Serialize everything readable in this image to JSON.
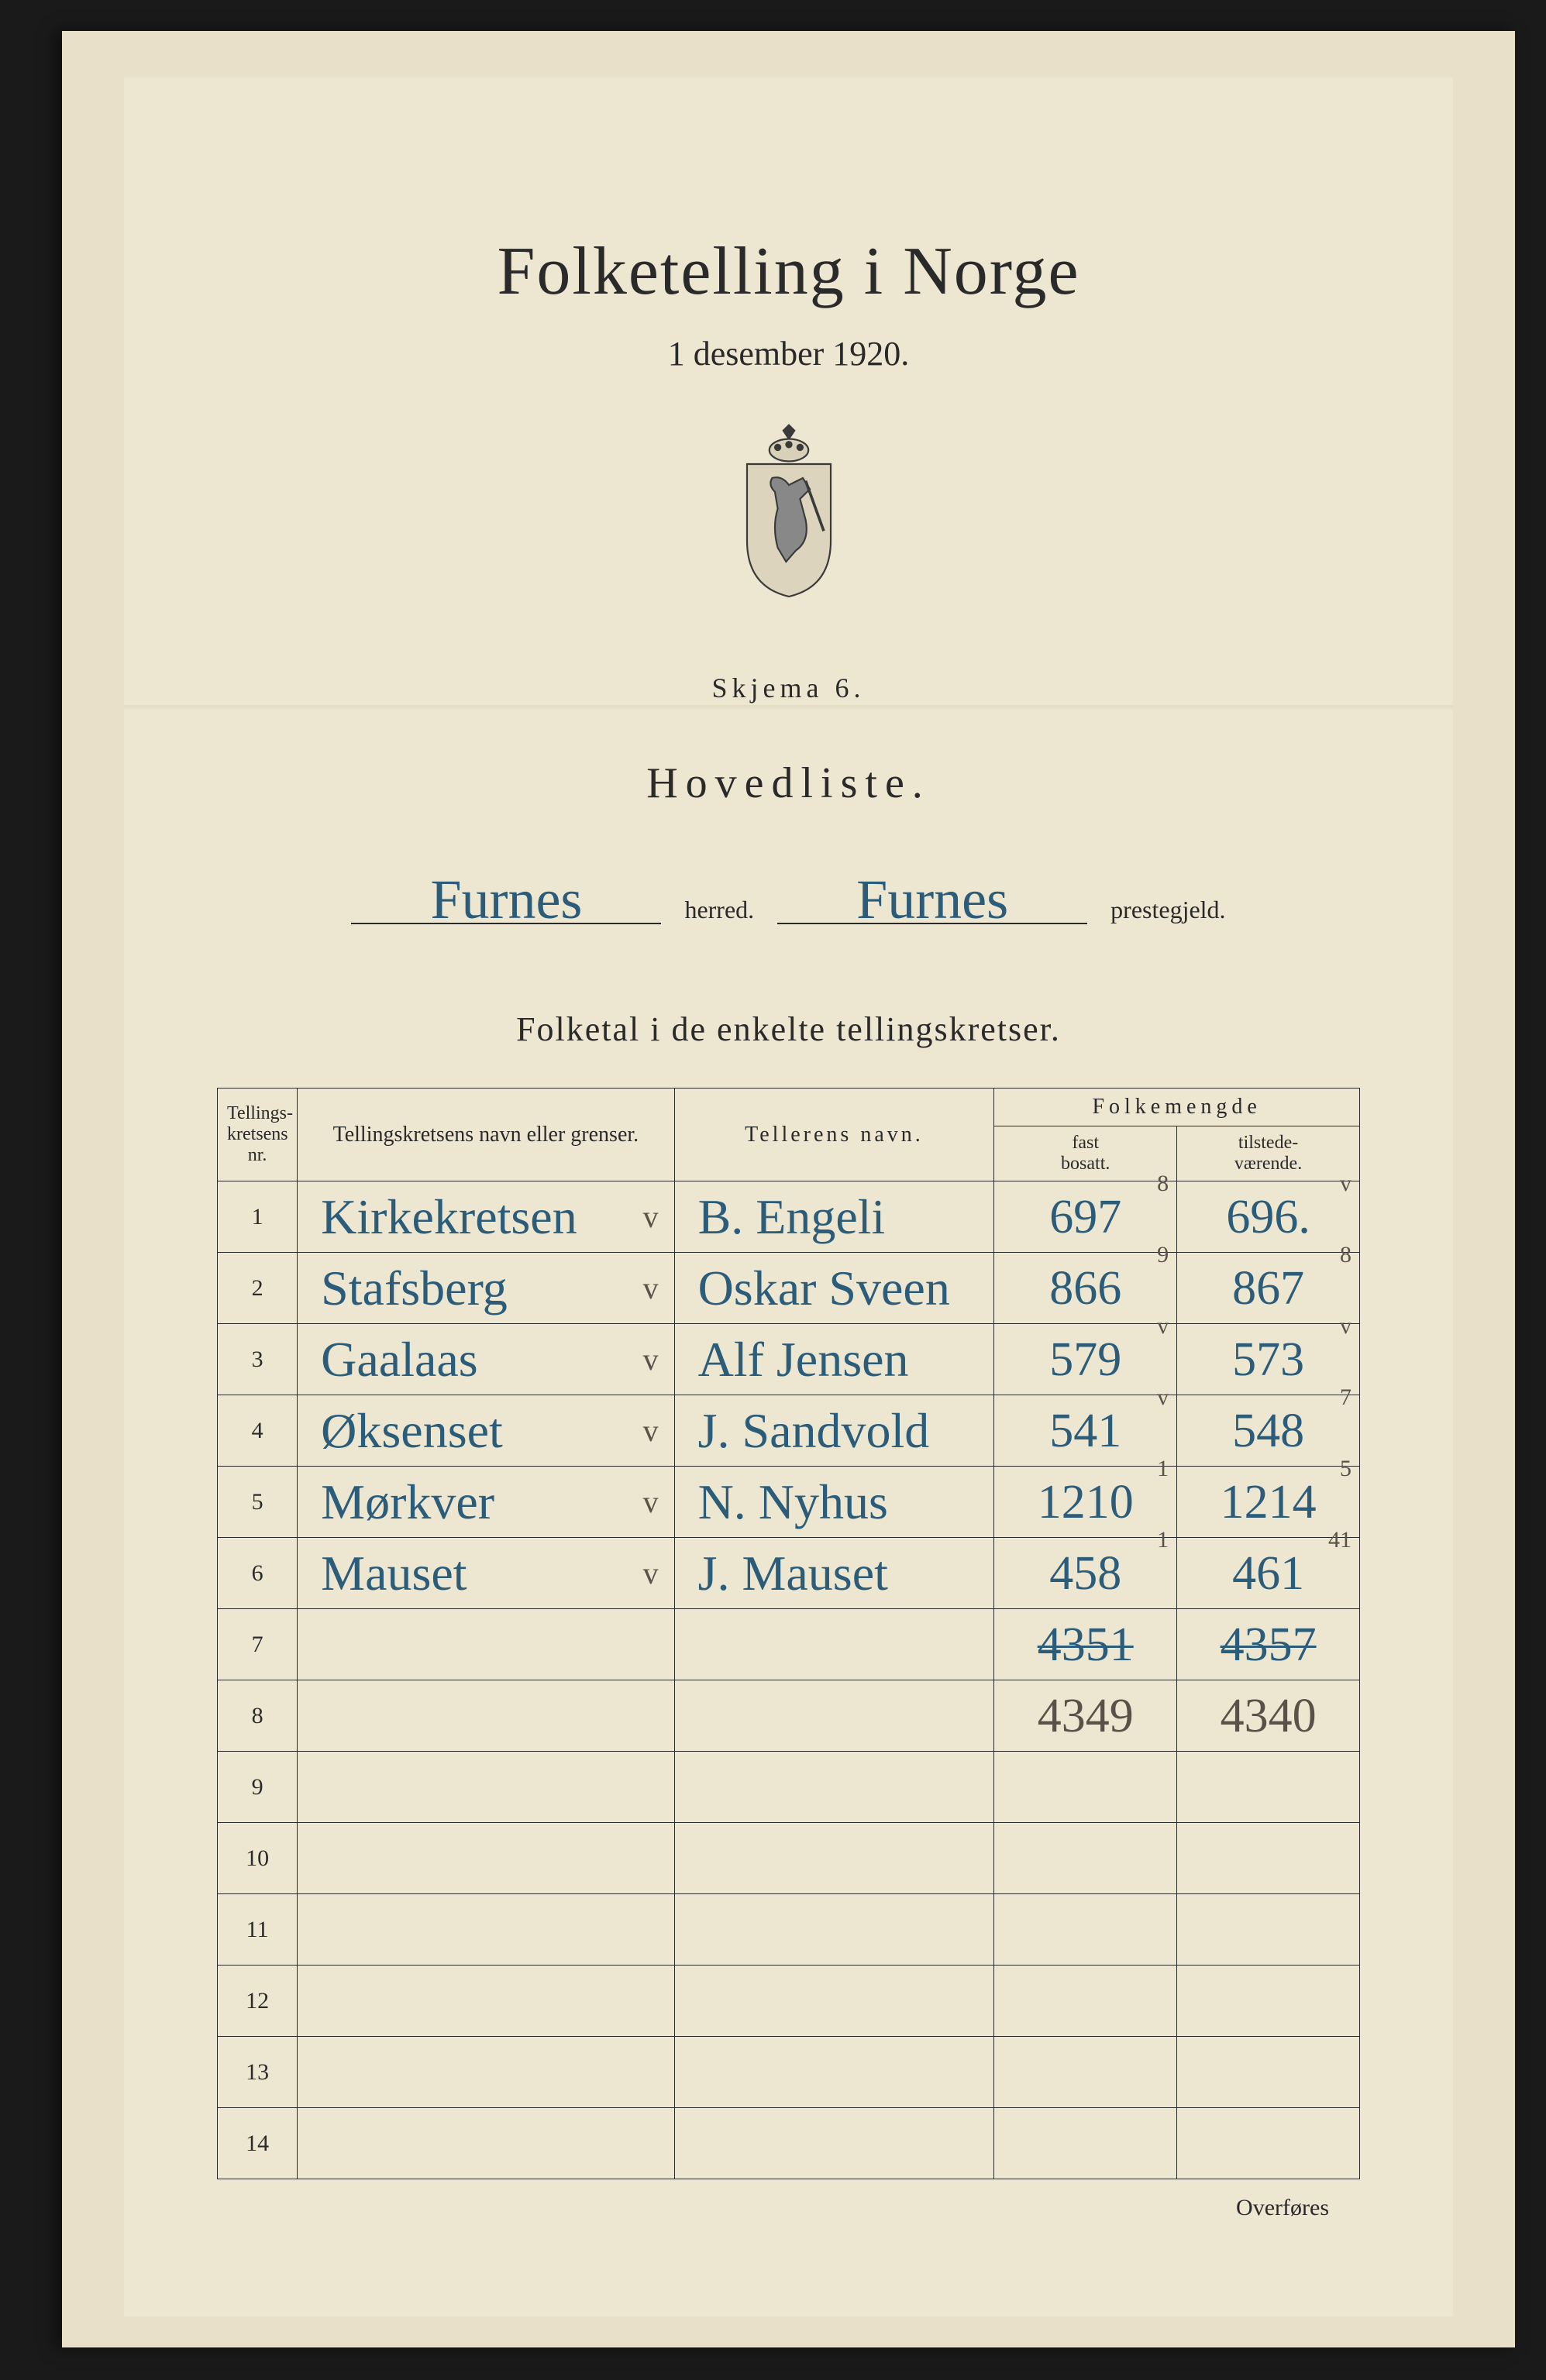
{
  "page": {
    "background_color": "#1a1a1a",
    "paper_color": "#ede6d0",
    "ink_color": "#2a2a2a",
    "handwriting_ink": "#2b5c7a",
    "pencil_ink": "#5a5248"
  },
  "header": {
    "title": "Folketelling i Norge",
    "date": "1 desember 1920.",
    "schema_label": "Skjema 6.",
    "hovedliste_label": "Hovedliste.",
    "herred_value": "Furnes",
    "herred_label": "herred.",
    "prestegjeld_value": "Furnes",
    "prestegjeld_label": "prestegjeld.",
    "section_title": "Folketal i de enkelte tellingskretser."
  },
  "table": {
    "headers": {
      "nr": "Tellings-\nkretsens\nnr.",
      "name": "Tellingskretsens navn eller grenser.",
      "teller": "Tellerens navn.",
      "folkemengde": "Folkemengde",
      "fast": "fast\nbosatt.",
      "tilstede": "tilstede-\nværende."
    },
    "rows": [
      {
        "nr": "1",
        "name": "Kirkekretsen",
        "check": "v",
        "teller": "B. Engeli",
        "fast": "697",
        "fast_sup": "8",
        "tils": "696.",
        "tils_mark": "v"
      },
      {
        "nr": "2",
        "name": "Stafsberg",
        "check": "v",
        "teller": "Oskar Sveen",
        "fast": "866",
        "fast_sup": "9",
        "tils": "867",
        "tils_mark": "8"
      },
      {
        "nr": "3",
        "name": "Gaalaas",
        "check": "v",
        "teller": "Alf Jensen",
        "fast": "579",
        "fast_sup": "v",
        "tils": "573",
        "tils_mark": "v"
      },
      {
        "nr": "4",
        "name": "Øksenset",
        "check": "v",
        "teller": "J. Sandvold",
        "fast": "541",
        "fast_sup": "v",
        "tils": "548",
        "tils_mark": "7"
      },
      {
        "nr": "5",
        "name": "Mørkver",
        "check": "v",
        "teller": "N. Nyhus",
        "fast": "1210",
        "fast_sup": "1",
        "tils": "1214",
        "tils_mark": "5"
      },
      {
        "nr": "6",
        "name": "Mauset",
        "check": "v",
        "teller": "J. Mauset",
        "fast": "458",
        "fast_sup": "1",
        "tils": "461",
        "tils_mark": "41"
      },
      {
        "nr": "7",
        "name": "",
        "check": "",
        "teller": "",
        "fast": "4351",
        "fast_struck": true,
        "tils": "4357",
        "tils_struck": true
      },
      {
        "nr": "8",
        "name": "",
        "check": "",
        "teller": "",
        "fast": "4349",
        "fast_pencil": true,
        "tils": "4340",
        "tils_pencil": true
      },
      {
        "nr": "9"
      },
      {
        "nr": "10"
      },
      {
        "nr": "11"
      },
      {
        "nr": "12"
      },
      {
        "nr": "13"
      },
      {
        "nr": "14"
      }
    ],
    "overfores_label": "Overføres"
  }
}
